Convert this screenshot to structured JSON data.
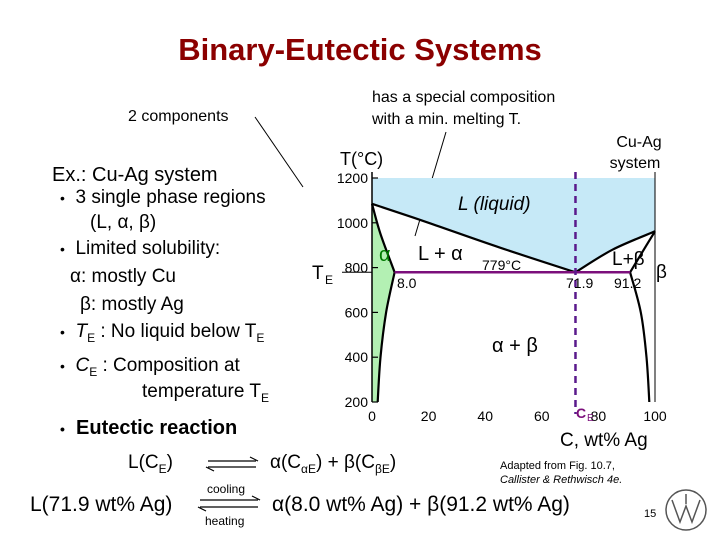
{
  "title": "Binary-Eutectic Systems",
  "callout_components": "2 components",
  "callout_composition_line1": "has a special composition",
  "callout_composition_line2": "with a min. melting T.",
  "system_label_line1": "Cu-Ag",
  "system_label_line2": "system",
  "example": "Ex.: Cu-Ag system",
  "bullets": {
    "b1": "3 single phase regions",
    "b1_sub": "(L, α, β)",
    "b2": "Limited solubility:",
    "b2_alpha": "α: mostly Cu",
    "b2_beta": "β: mostly Ag",
    "b3_sym": "T",
    "b3_sub": "E",
    "b3_text": ": No liquid below T",
    "b3_sub2": "E",
    "b4_sym": "C",
    "b4_sub": "E",
    "b4_text": ": Composition at",
    "b4_line2_text": "temperature T",
    "b4_line2_sub": "E",
    "b5": "Eutectic reaction"
  },
  "bullet_char": "•",
  "reaction": {
    "left": "L(C",
    "left_sub": "E",
    "left_close": ")",
    "right_alpha": "α(C",
    "right_alpha_sub": "αE",
    "right_mid": ") + β(C",
    "right_beta_sub": "βE",
    "right_close": ")",
    "cooling": "cooling",
    "heating": "heating",
    "bottom_left": "L(71.9 wt% Ag)",
    "bottom_right": "α(8.0 wt% Ag) + β(91.2 wt% Ag)"
  },
  "credit_line1": "Adapted from Fig. 10.7,",
  "credit_line2": "Callister & Rethwisch 4e.",
  "page_number": "15",
  "colors": {
    "title": "#8b0000",
    "liquid": "#c6e9f7",
    "alpha_region": "#b3f0b3",
    "eutectic_line": "#7b0f7b",
    "composition_line": "#5a1a8c"
  },
  "chart_data": {
    "type": "phase-diagram",
    "xlabel": "C, wt% Ag",
    "ylabel": "T(°C)",
    "x_ticks": [
      "0",
      "20",
      "40",
      "60",
      "80",
      "100"
    ],
    "y_ticks": [
      "200",
      "400",
      "600",
      "800",
      "1000",
      "1200"
    ],
    "xlim": [
      0,
      100
    ],
    "ylim": [
      200,
      1200
    ],
    "regions": {
      "liquid": "L (liquid)",
      "alpha": "α",
      "beta": "β",
      "l_alpha": "L + α",
      "l_beta": "L+β",
      "alpha_beta": "α + β"
    },
    "eutectic_temperature_label": "779°C",
    "te_symbol": "T",
    "te_sub": "E",
    "ce_symbol": "C",
    "ce_sub": "E",
    "alpha_solubility_label": "8.0",
    "eutectic_composition_label": "71.9",
    "beta_solubility_label": "91.2",
    "eutectic_point": {
      "x": 71.9,
      "y": 779
    },
    "cu_melting_point": 1085,
    "ag_melting_point": 962,
    "liquidus_left": [
      [
        0,
        1085
      ],
      [
        20,
        1000
      ],
      [
        45,
        890
      ],
      [
        71.9,
        779
      ]
    ],
    "liquidus_right": [
      [
        71.9,
        779
      ],
      [
        85,
        880
      ],
      [
        100,
        962
      ]
    ],
    "solidus_alpha": [
      [
        0,
        1085
      ],
      [
        3,
        950
      ],
      [
        8.0,
        779
      ]
    ],
    "solvus_alpha": [
      [
        8.0,
        779
      ],
      [
        5,
        600
      ],
      [
        3,
        400
      ],
      [
        2,
        200
      ]
    ],
    "solidus_beta": [
      [
        91.2,
        779
      ],
      [
        97,
        900
      ],
      [
        100,
        962
      ]
    ],
    "solvus_beta": [
      [
        91.2,
        779
      ],
      [
        95,
        600
      ],
      [
        97,
        400
      ],
      [
        98,
        200
      ]
    ]
  }
}
